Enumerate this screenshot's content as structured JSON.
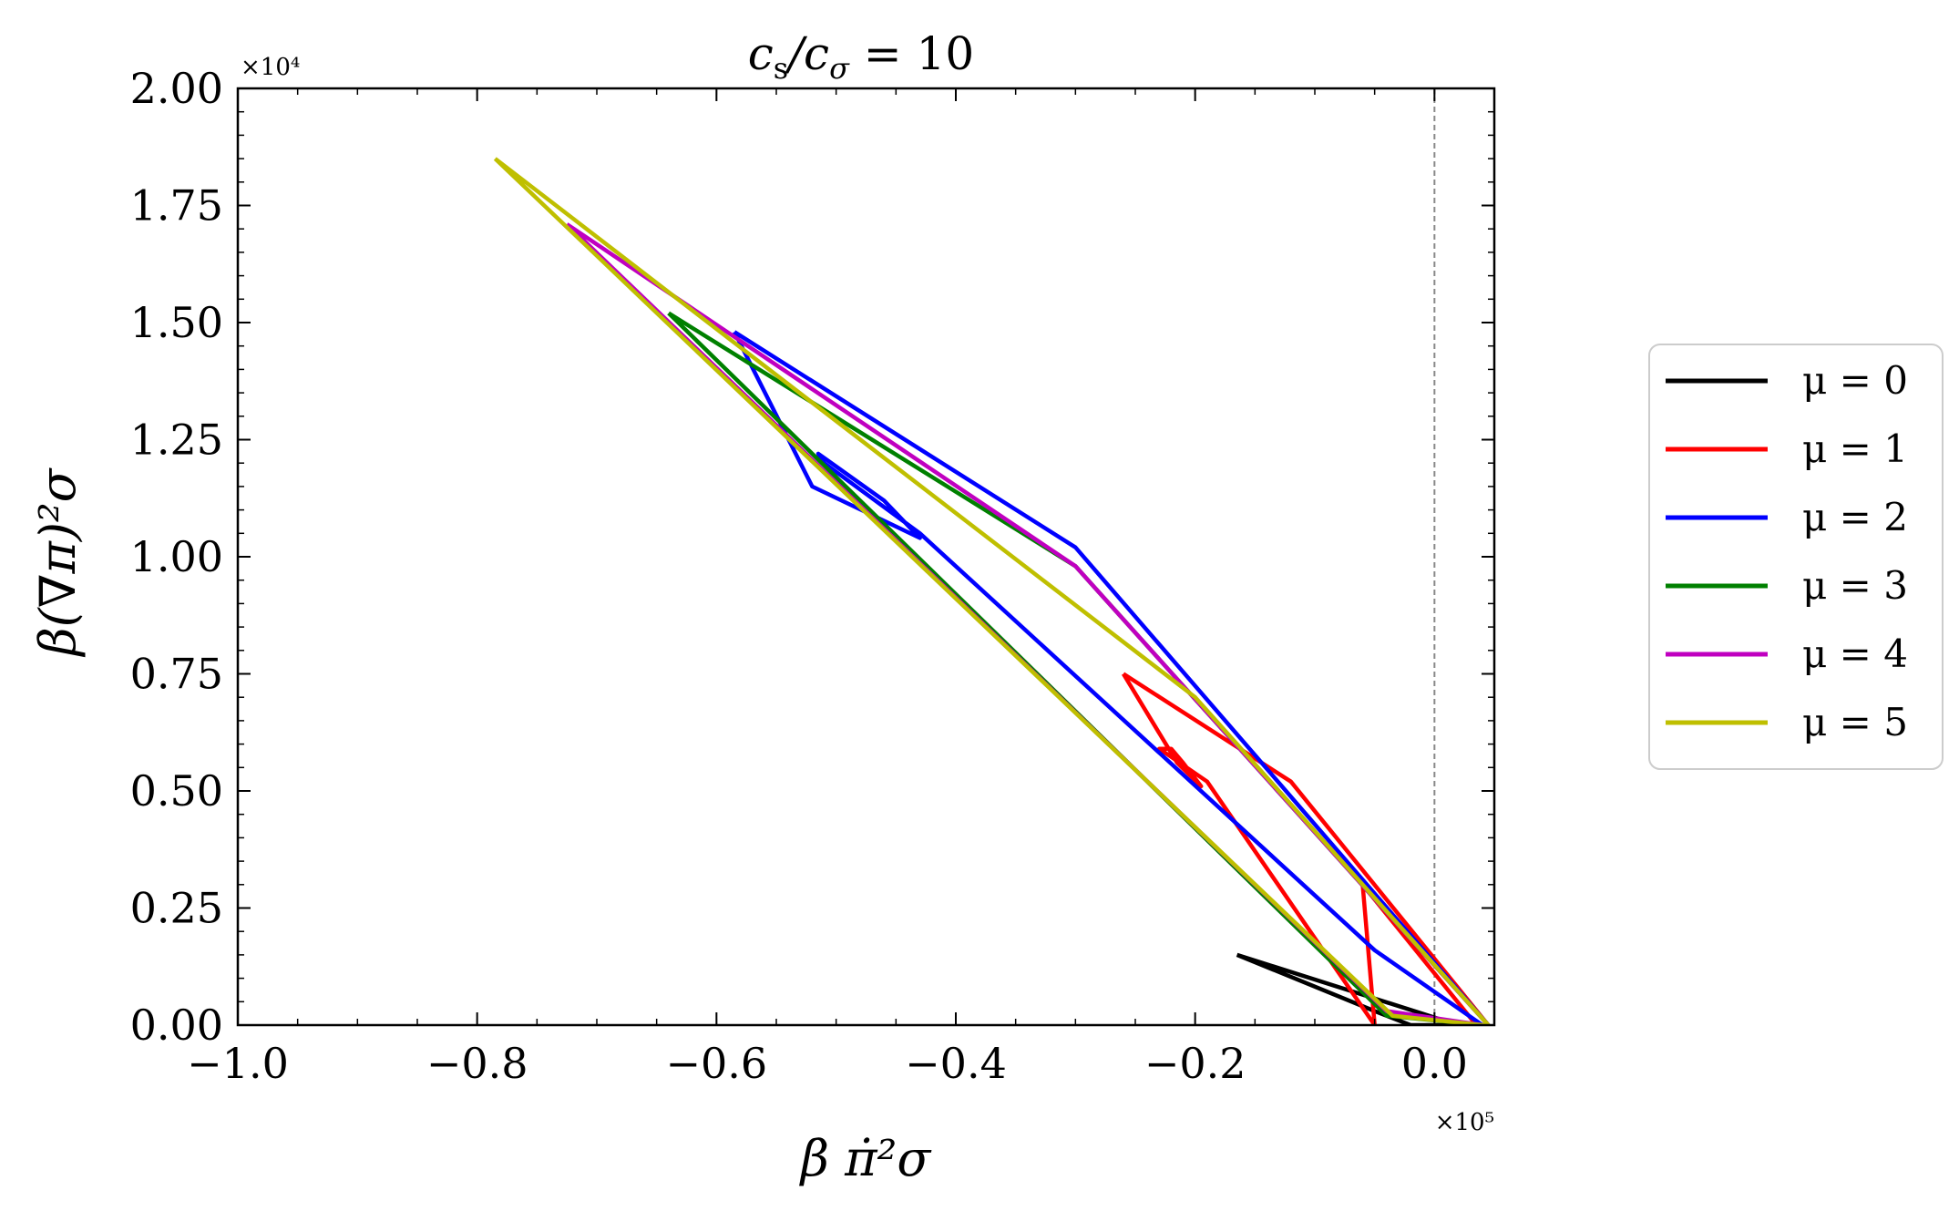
{
  "chart_data": {
    "type": "line",
    "title": "c_s/c_σ = 10",
    "title_parts": {
      "a": "c",
      "a_sub": "s",
      "slash": "/c",
      "b_sub": "σ",
      "rest": " = 10"
    },
    "xlabel": "β π̇²σ",
    "ylabel": "β(∇π)²σ",
    "x_multiplier": "×10⁵",
    "y_multiplier": "×10⁴",
    "xlim": [
      -1.0,
      0.05
    ],
    "ylim": [
      0.0,
      2.0
    ],
    "xticks": [
      -1.0,
      -0.8,
      -0.6,
      -0.4,
      -0.2,
      0.0
    ],
    "xtick_labels": [
      "−1.0",
      "−0.8",
      "−0.6",
      "−0.4",
      "−0.2",
      "0.0"
    ],
    "yticks": [
      0.0,
      0.25,
      0.5,
      0.75,
      1.0,
      1.25,
      1.5,
      1.75,
      2.0
    ],
    "ytick_labels": [
      "0.00",
      "0.25",
      "0.50",
      "0.75",
      "1.00",
      "1.25",
      "1.50",
      "1.75",
      "2.00"
    ],
    "reference_line": {
      "x": 0.0,
      "style": "dashed",
      "color": "#888888"
    },
    "grid": false,
    "legend_position": "outside-right",
    "series": [
      {
        "name": "μ = 0",
        "color": "#000000",
        "x": [
          -0.165,
          -0.06,
          0.02,
          -0.02,
          -0.05,
          -0.165
        ],
        "y": [
          0.15,
          0.065,
          0.0,
          0.0,
          0.03,
          0.15
        ]
      },
      {
        "name": "μ = 1",
        "color": "#ff0000",
        "x": [
          -0.26,
          -0.12,
          0.045,
          0.035,
          -0.06,
          -0.05,
          -0.19,
          -0.23,
          -0.22,
          -0.21,
          -0.195,
          -0.215,
          -0.26
        ],
        "y": [
          0.75,
          0.52,
          0.0,
          0.0,
          0.3,
          0.0,
          0.52,
          0.59,
          0.59,
          0.56,
          0.51,
          0.56,
          0.75
        ]
      },
      {
        "name": "μ = 2",
        "color": "#0000ff",
        "x": [
          -0.585,
          -0.3,
          0.045,
          0.04,
          -0.05,
          -0.43,
          -0.51,
          -0.515,
          -0.46,
          -0.43,
          -0.52,
          -0.585
        ],
        "y": [
          1.48,
          1.02,
          0.0,
          0.0,
          0.16,
          1.05,
          1.2,
          1.22,
          1.12,
          1.04,
          1.15,
          1.48
        ]
      },
      {
        "name": "μ = 3",
        "color": "#008000",
        "x": [
          -0.64,
          -0.3,
          0.045,
          0.04,
          -0.04,
          -0.64
        ],
        "y": [
          1.52,
          0.98,
          0.0,
          0.0,
          0.02,
          1.52
        ]
      },
      {
        "name": "μ = 4",
        "color": "#c000c0",
        "x": [
          -0.725,
          -0.3,
          0.045,
          0.04,
          -0.04,
          -0.725
        ],
        "y": [
          1.71,
          0.98,
          0.0,
          0.0,
          0.03,
          1.71
        ]
      },
      {
        "name": "μ = 5",
        "color": "#bfbf00",
        "x": [
          -0.785,
          -0.2,
          0.045,
          0.04,
          -0.035,
          -0.785
        ],
        "y": [
          1.85,
          0.7,
          0.0,
          0.0,
          0.02,
          1.85
        ]
      }
    ]
  }
}
